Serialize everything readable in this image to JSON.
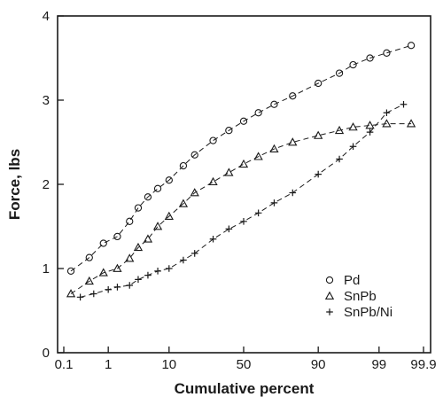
{
  "chart_data": {
    "type": "scatter",
    "title": "",
    "xlabel": "Cumulative percent",
    "ylabel": "Force, lbs",
    "x_scale": "normal-probability",
    "xlim": [
      0.1,
      99.9
    ],
    "ylim": [
      0,
      4
    ],
    "x_ticks": [
      0.1,
      1,
      10,
      50,
      90,
      99,
      99.9
    ],
    "x_tick_labels": [
      "0.1",
      "1",
      "10",
      "50",
      "90",
      "99",
      "99.9"
    ],
    "y_ticks": [
      0,
      1,
      2,
      3,
      4
    ],
    "y_tick_labels": [
      "0",
      "1",
      "2",
      "3",
      "4"
    ],
    "grid": false,
    "legend_position": "bottom-right",
    "colors": {
      "ink": "#1a1a1a",
      "background": "#ffffff"
    },
    "series": [
      {
        "name": "Pd",
        "marker": "circle",
        "fit_line": true,
        "points": [
          [
            0.15,
            0.97
          ],
          [
            0.4,
            1.13
          ],
          [
            0.8,
            1.3
          ],
          [
            1.5,
            1.38
          ],
          [
            2.5,
            1.56
          ],
          [
            3.5,
            1.72
          ],
          [
            5,
            1.85
          ],
          [
            7,
            1.95
          ],
          [
            10,
            2.05
          ],
          [
            15,
            2.22
          ],
          [
            20,
            2.35
          ],
          [
            30,
            2.52
          ],
          [
            40,
            2.64
          ],
          [
            50,
            2.75
          ],
          [
            60,
            2.85
          ],
          [
            70,
            2.95
          ],
          [
            80,
            3.05
          ],
          [
            90,
            3.2
          ],
          [
            95,
            3.32
          ],
          [
            97,
            3.42
          ],
          [
            98.5,
            3.5
          ],
          [
            99.3,
            3.56
          ],
          [
            99.8,
            3.65
          ]
        ]
      },
      {
        "name": "SnPb",
        "marker": "triangle",
        "fit_line": true,
        "points": [
          [
            0.15,
            0.7
          ],
          [
            0.4,
            0.85
          ],
          [
            0.8,
            0.95
          ],
          [
            1.5,
            1.0
          ],
          [
            2.5,
            1.12
          ],
          [
            3.5,
            1.25
          ],
          [
            5,
            1.35
          ],
          [
            7,
            1.5
          ],
          [
            10,
            1.62
          ],
          [
            15,
            1.77
          ],
          [
            20,
            1.9
          ],
          [
            30,
            2.03
          ],
          [
            40,
            2.14
          ],
          [
            50,
            2.24
          ],
          [
            60,
            2.33
          ],
          [
            70,
            2.42
          ],
          [
            80,
            2.5
          ],
          [
            90,
            2.58
          ],
          [
            95,
            2.64
          ],
          [
            97,
            2.68
          ],
          [
            98.5,
            2.7
          ],
          [
            99.3,
            2.72
          ],
          [
            99.8,
            2.72
          ]
        ]
      },
      {
        "name": "SnPb/Ni",
        "marker": "plus",
        "fit_line": true,
        "points": [
          [
            0.25,
            0.66
          ],
          [
            0.5,
            0.7
          ],
          [
            1,
            0.75
          ],
          [
            1.5,
            0.78
          ],
          [
            2.5,
            0.8
          ],
          [
            3.5,
            0.87
          ],
          [
            5,
            0.92
          ],
          [
            7,
            0.97
          ],
          [
            10,
            1.0
          ],
          [
            15,
            1.1
          ],
          [
            20,
            1.18
          ],
          [
            30,
            1.35
          ],
          [
            40,
            1.47
          ],
          [
            50,
            1.56
          ],
          [
            60,
            1.66
          ],
          [
            70,
            1.78
          ],
          [
            80,
            1.9
          ],
          [
            90,
            2.12
          ],
          [
            95,
            2.3
          ],
          [
            97,
            2.45
          ],
          [
            98.5,
            2.62
          ],
          [
            99.3,
            2.85
          ],
          [
            99.7,
            2.95
          ]
        ]
      }
    ]
  }
}
